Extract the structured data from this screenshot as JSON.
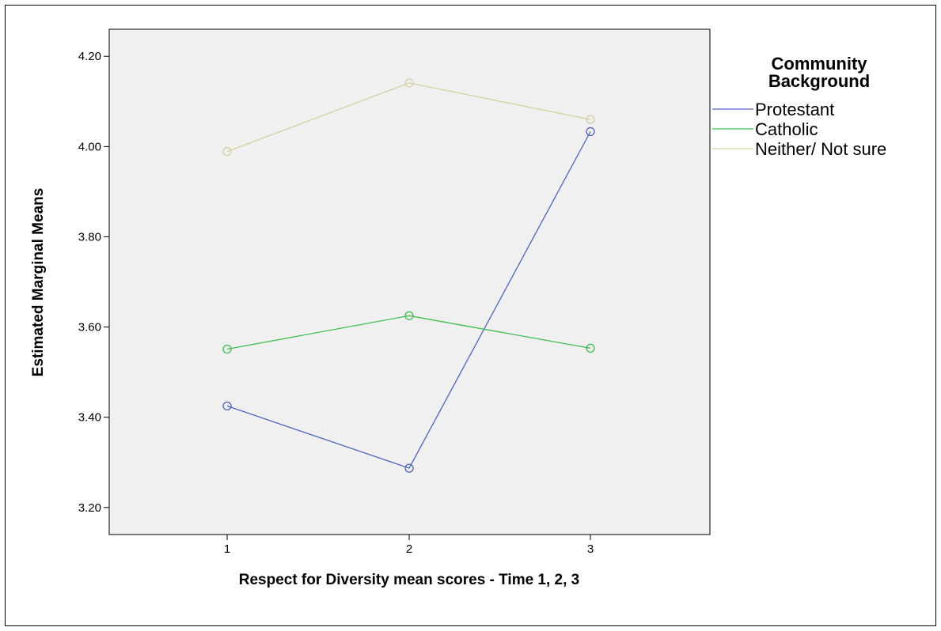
{
  "chart_data": {
    "type": "line",
    "xlabel": "Respect for Diversity mean scores - Time 1, 2, 3",
    "ylabel": "Estimated Marginal Means",
    "categories": [
      "1",
      "2",
      "3"
    ],
    "ylim": [
      3.14,
      4.26
    ],
    "yticks": [
      "3.20",
      "3.40",
      "3.60",
      "3.80",
      "4.00",
      "4.20"
    ],
    "grid": false,
    "legend_position": "right",
    "legend": {
      "title_line1": "Community",
      "title_line2": "Background"
    },
    "series": [
      {
        "name": "Protestant",
        "color": "#4f62c0",
        "values": [
          3.425,
          3.287,
          4.033
        ]
      },
      {
        "name": "Catholic",
        "color": "#3fbf4f",
        "values": [
          3.551,
          3.625,
          3.553
        ]
      },
      {
        "name": "Neither/ Not sure",
        "color": "#d6d0a0",
        "values": [
          3.989,
          4.141,
          4.06
        ]
      }
    ]
  }
}
